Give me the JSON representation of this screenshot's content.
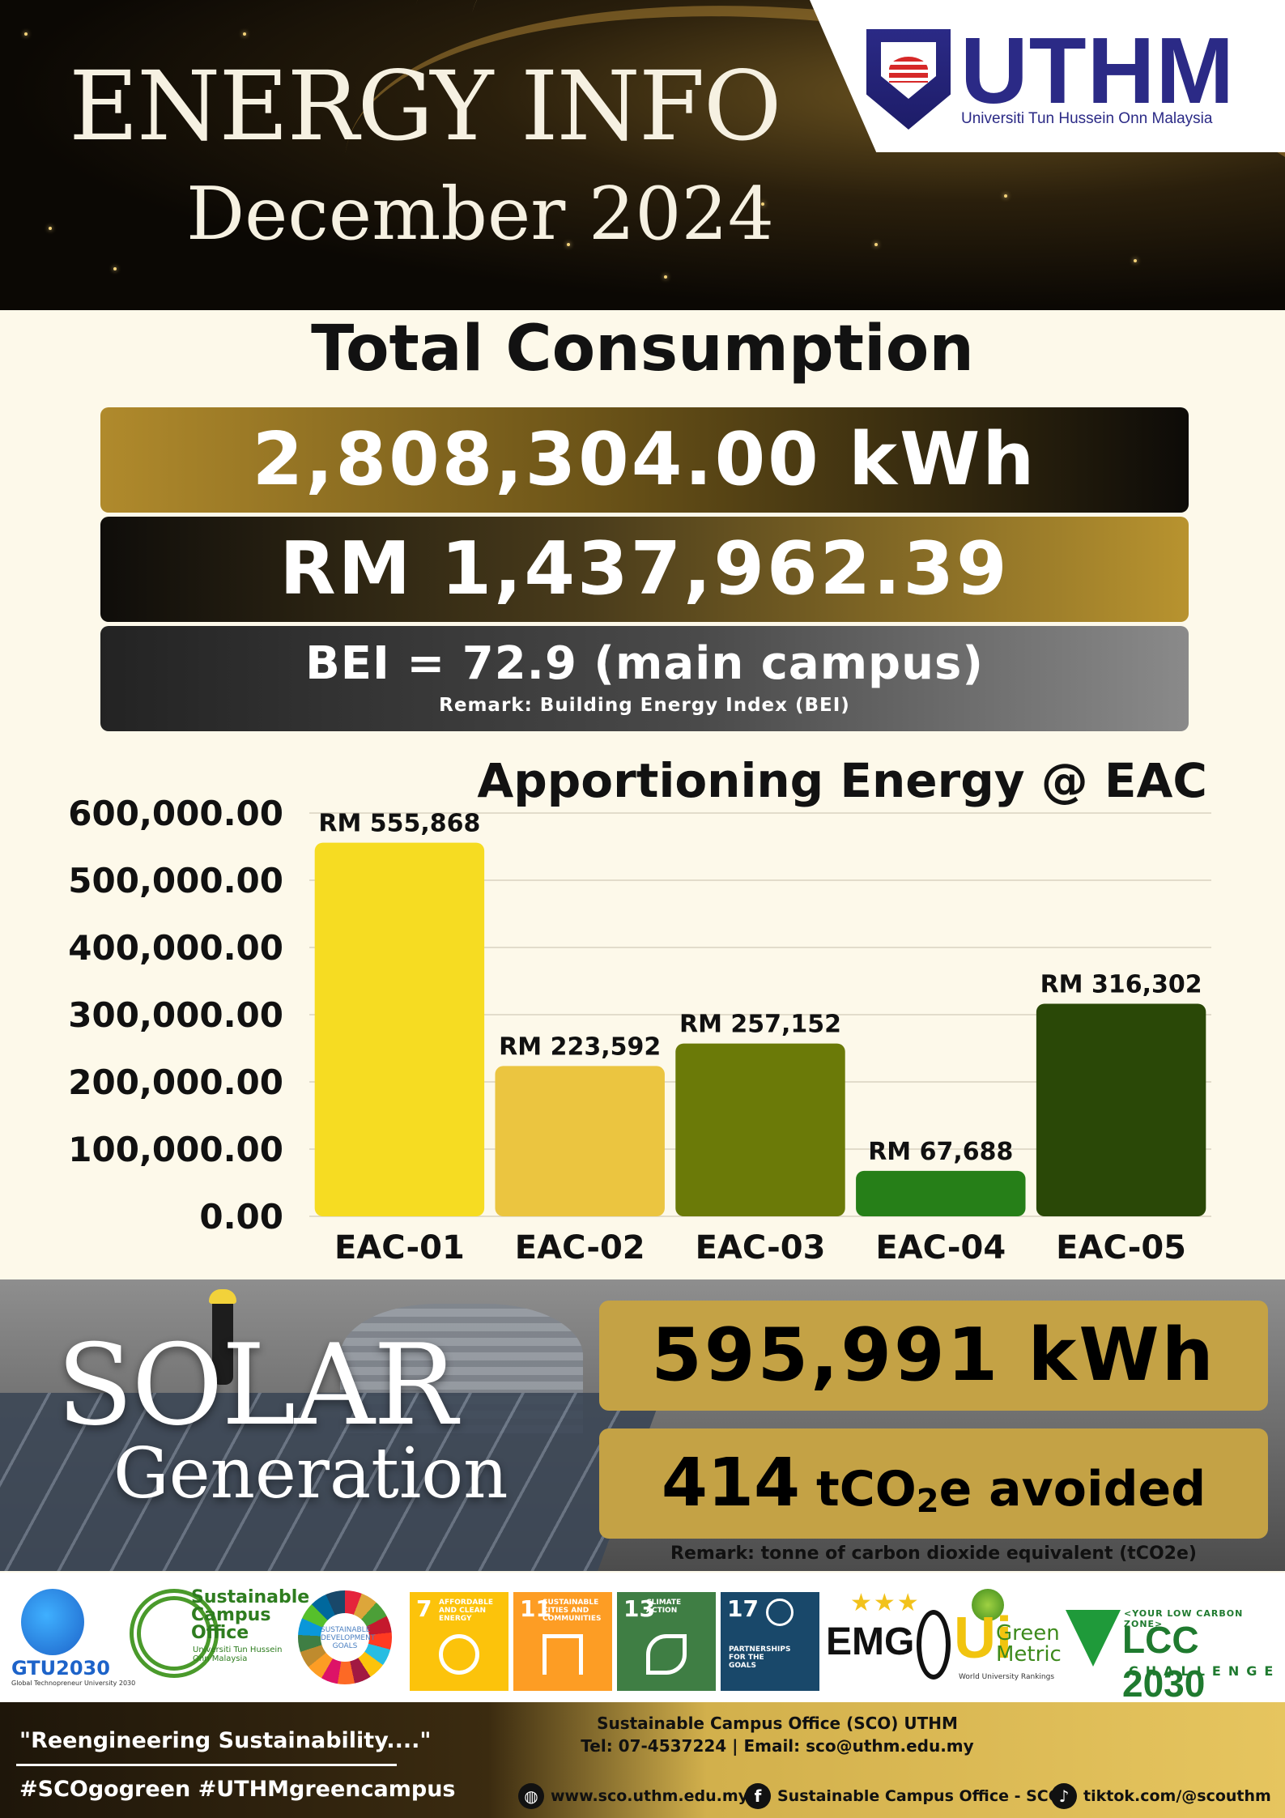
{
  "header": {
    "title": "ENERGY INFO",
    "month": "December 2024",
    "logo_text": "UTHM",
    "logo_sub": "Universiti Tun Hussein Onn Malaysia"
  },
  "total": {
    "heading": "Total Consumption",
    "kwh": "2,808,304.00 kWh",
    "cost": "RM 1,437,962.39",
    "bei": "BEI = 72.9 (main campus)",
    "bei_remark": "Remark: Building Energy Index (BEI)"
  },
  "chart_data": {
    "type": "bar",
    "title": "Apportioning Energy @ EAC",
    "categories": [
      "EAC-01",
      "EAC-02",
      "EAC-03",
      "EAC-04",
      "EAC-05"
    ],
    "values": [
      555868,
      223592,
      257152,
      67688,
      316302
    ],
    "data_labels": [
      "RM 555,868",
      "RM 223,592",
      "RM 257,152",
      "RM 67,688",
      "RM 316,302"
    ],
    "bar_colors": [
      "#f6dc22",
      "#ebc540",
      "#6b7a08",
      "#267f18",
      "#2a4807"
    ],
    "ylim": [
      0,
      600000
    ],
    "yticks": [
      "0.00",
      "100,000.00",
      "200,000.00",
      "300,000.00",
      "400,000.00",
      "500,000.00",
      "600,000.00"
    ],
    "grid": true,
    "xlabel": "",
    "ylabel": ""
  },
  "solar": {
    "title": "SOLAR",
    "subtitle": "Generation",
    "kwh": "595,991 kWh",
    "co2_value": "414",
    "co2_unit_a": "tCO",
    "co2_unit_sub": "2",
    "co2_unit_b": "e avoided",
    "remark": "Remark: tonne of carbon dioxide equivalent (tCO2e)"
  },
  "logos": {
    "gtu": "GTU2030",
    "gtu_small": "Global Technopreneur University 2030",
    "sco_title": "Sustainable Campus Office",
    "sco_sub": "Universiti Tun Hussein Onn Malaysia",
    "sdg_center": "SUSTAINABLE DEVELOPMENT GOALS",
    "sdg7_num": "7",
    "sdg7_label": "AFFORDABLE AND CLEAN ENERGY",
    "sdg11_num": "11",
    "sdg11_label": "SUSTAINABLE CITIES AND COMMUNITIES",
    "sdg13_num": "13",
    "sdg13_label": "CLIMATE ACTION",
    "sdg17_num": "17",
    "sdg17_label": "PARTNERSHIPS FOR THE GOALS",
    "emg": "EMG",
    "ui": "Ui",
    "ui_gm": "Green Metric",
    "ui_sub": "World University Rankings",
    "lcc_top": "<YOUR LOW CARBON ZONE>",
    "lcc_big": "LCC 2030",
    "lcc_ch": "CHALLENGE",
    "colors": {
      "sdg7": "#fcc30b",
      "sdg11": "#fd9d24",
      "sdg13": "#3f7e44",
      "sdg17": "#19486a"
    }
  },
  "footer": {
    "slogan": "\"Reengineering Sustainability....\"",
    "hashtags": "#SCOgogreen #UTHMgreencampus",
    "contact_name": "Sustainable Campus Office (SCO) UTHM",
    "contact_tel": "Tel: 07-4537224 | Email: sco@uthm.edu.my",
    "website": "www.sco.uthm.edu.my",
    "facebook": "Sustainable Campus Office - SCO",
    "tiktok": "tiktok.com/@scouthm",
    "icons": [
      "globe-icon",
      "facebook-icon",
      "tiktok-icon"
    ]
  }
}
